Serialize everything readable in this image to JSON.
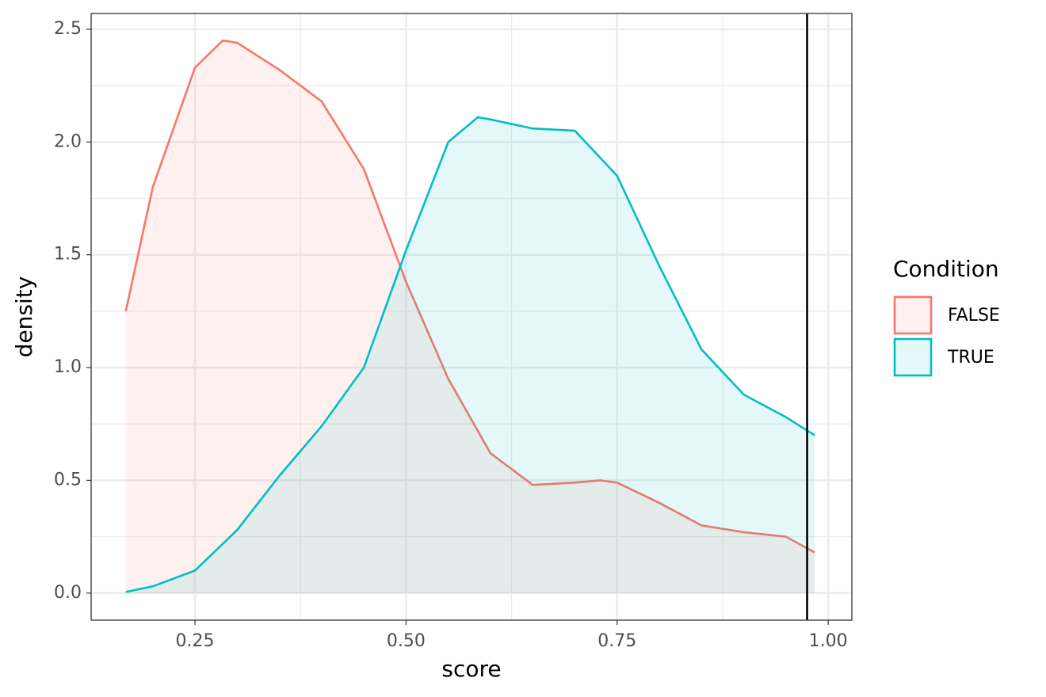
{
  "chart_data": {
    "type": "density",
    "x_label": "score",
    "y_label": "density",
    "legend_title": "Condition",
    "legend_position": "right",
    "xlim": [
      0.127,
      1.028
    ],
    "ylim": [
      -0.12,
      2.57
    ],
    "xticks": [
      {
        "value": 0.25,
        "label": "0.25"
      },
      {
        "value": 0.5,
        "label": "0.50"
      },
      {
        "value": 0.75,
        "label": "0.75"
      },
      {
        "value": 1,
        "label": "1.00"
      }
    ],
    "yticks": [
      {
        "value": 0,
        "label": "0.0"
      },
      0.5,
      {
        "value": 1,
        "label": "1.0"
      },
      1.5,
      {
        "value": 2,
        "label": "2.0"
      },
      2.5
    ],
    "grid": true,
    "fill_opacity": 0.1,
    "vline": 0.975,
    "vline_color": "#000000",
    "series": [
      {
        "name": "FALSE",
        "color": "#F8766D",
        "x": [
          0.168,
          0.2,
          0.25,
          0.283,
          0.3,
          0.35,
          0.4,
          0.45,
          0.5,
          0.55,
          0.6,
          0.65,
          0.7,
          0.73,
          0.75,
          0.8,
          0.85,
          0.9,
          0.95,
          0.984
        ],
        "values": [
          1.25,
          1.8,
          2.33,
          2.45,
          2.44,
          2.32,
          2.18,
          1.88,
          1.38,
          0.95,
          0.62,
          0.48,
          0.49,
          0.5,
          0.49,
          0.4,
          0.3,
          0.27,
          0.25,
          0.18
        ]
      },
      {
        "name": "TRUE",
        "color": "#00BFC4",
        "x": [
          0.168,
          0.2,
          0.25,
          0.3,
          0.35,
          0.4,
          0.45,
          0.5,
          0.55,
          0.585,
          0.6,
          0.65,
          0.7,
          0.75,
          0.8,
          0.85,
          0.9,
          0.95,
          0.984
        ],
        "values": [
          0.005,
          0.03,
          0.1,
          0.28,
          0.52,
          0.74,
          1.0,
          1.52,
          2.0,
          2.11,
          2.1,
          2.06,
          2.05,
          1.85,
          1.45,
          1.08,
          0.88,
          0.78,
          0.7
        ]
      }
    ]
  }
}
